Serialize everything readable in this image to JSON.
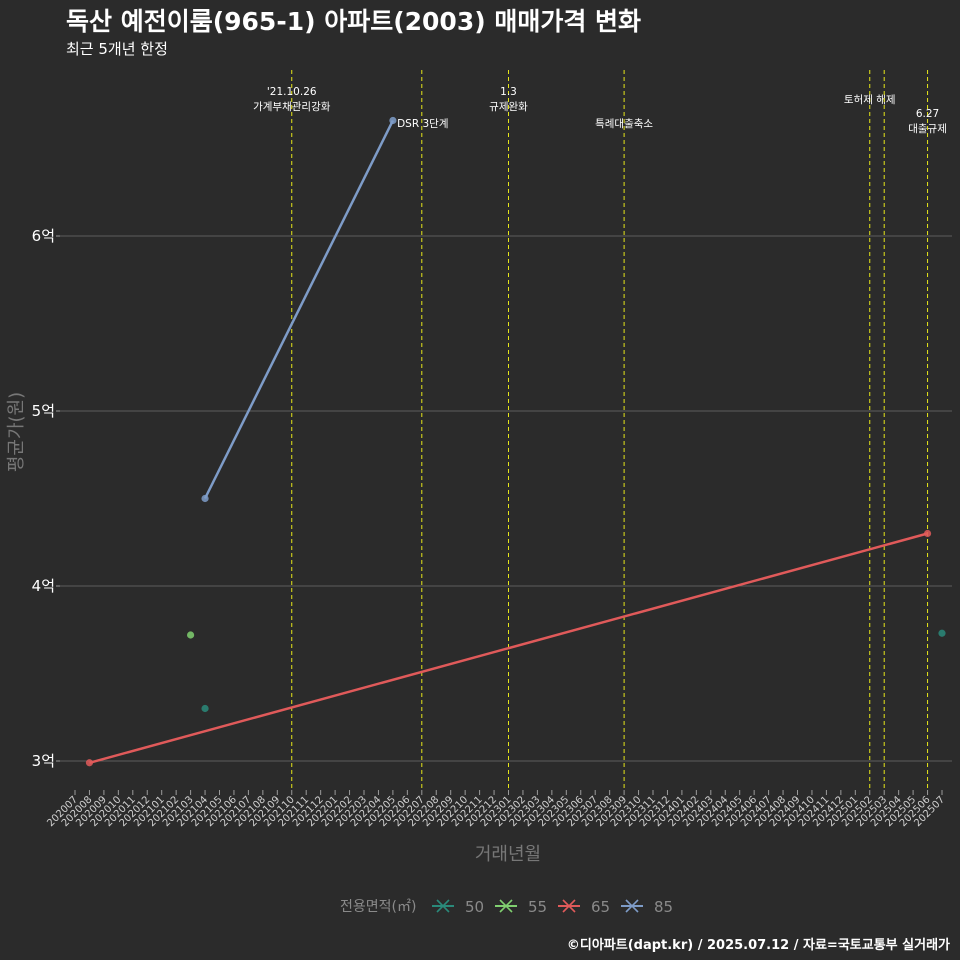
{
  "header": {
    "title": "독산 예전이룸(965-1) 아파트(2003) 매매가격 변화",
    "subtitle": "최근 5개년 한정",
    "caption": "©디아파트(dapt.kr) / 2025.07.12 / 자료=국토교통부 실거래가"
  },
  "colors": {
    "background": "#2b2b2b",
    "grid": "#5c5c5c",
    "event_line": "#e6e619",
    "text": "#ffffff",
    "muted": "#8a8a8a"
  },
  "chart_data": {
    "type": "line",
    "title": "독산 예전이룸(965-1) 아파트(2003) 매매가격 변화",
    "subtitle": "최근 5개년 한정",
    "xlabel": "거래년월",
    "ylabel": "평균가(원)",
    "x": [
      "202007",
      "202008",
      "202009",
      "202010",
      "202011",
      "202012",
      "202101",
      "202102",
      "202103",
      "202104",
      "202105",
      "202106",
      "202107",
      "202108",
      "202109",
      "202110",
      "202111",
      "202112",
      "202201",
      "202202",
      "202203",
      "202204",
      "202205",
      "202206",
      "202207",
      "202208",
      "202209",
      "202210",
      "202211",
      "202212",
      "202301",
      "202302",
      "202303",
      "202304",
      "202305",
      "202306",
      "202307",
      "202308",
      "202309",
      "202310",
      "202311",
      "202312",
      "202401",
      "202402",
      "202403",
      "202404",
      "202405",
      "202406",
      "202407",
      "202408",
      "202409",
      "202410",
      "202411",
      "202412",
      "202501",
      "202502",
      "202503",
      "202504",
      "202505",
      "202506",
      "202507"
    ],
    "y_ticks": [
      {
        "value": 300000000,
        "label": "3억"
      },
      {
        "value": 400000000,
        "label": "4억"
      },
      {
        "value": 500000000,
        "label": "5억"
      },
      {
        "value": 600000000,
        "label": "6억"
      }
    ],
    "ylim": [
      282000000,
      700000000
    ],
    "legend": {
      "title": "전용면적(㎡)",
      "entries": [
        {
          "name": "50",
          "color": "#2a8a7a"
        },
        {
          "name": "55",
          "color": "#80d070"
        },
        {
          "name": "65",
          "color": "#e05a5a"
        },
        {
          "name": "85",
          "color": "#7e9cc8"
        }
      ]
    },
    "series": [
      {
        "name": "50",
        "color": "#2a8a7a",
        "points": [
          {
            "x": "202104",
            "y": 330000000
          },
          {
            "x": "202507",
            "y": 373000000
          }
        ]
      },
      {
        "name": "55",
        "color": "#80d070",
        "points": [
          {
            "x": "202103",
            "y": 372000000
          }
        ]
      },
      {
        "name": "65",
        "color": "#e05a5a",
        "points": [
          {
            "x": "202008",
            "y": 299000000
          },
          {
            "x": "202506",
            "y": 430000000
          }
        ]
      },
      {
        "name": "85",
        "color": "#7e9cc8",
        "points": [
          {
            "x": "202104",
            "y": 450000000
          },
          {
            "x": "202205",
            "y": 666000000
          }
        ]
      }
    ],
    "events": [
      {
        "x": "202110",
        "lines": [
          "'21.10.26",
          "가계부채관리강화"
        ]
      },
      {
        "x": "202207",
        "lines": [
          "DSR 3단계"
        ]
      },
      {
        "x": "202301",
        "lines": [
          "1.3",
          "규제완화"
        ]
      },
      {
        "x": "202309",
        "lines": [
          "특례대출축소"
        ]
      },
      {
        "x": "202502",
        "lines": [
          "토허제 해제"
        ]
      },
      {
        "x": "202503",
        "lines": []
      },
      {
        "x": "202506",
        "lines": [
          "6.27",
          "대출규제"
        ]
      }
    ]
  }
}
